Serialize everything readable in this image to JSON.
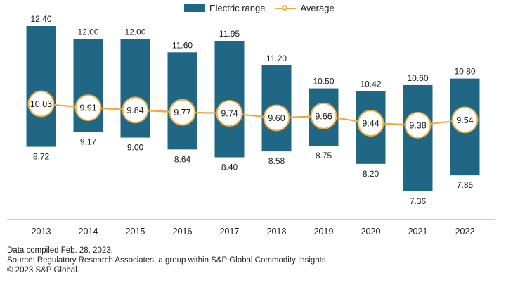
{
  "chart_data": {
    "type": "bar",
    "title": "",
    "xlabel": "",
    "ylabel": "",
    "categories": [
      "2013",
      "2014",
      "2015",
      "2016",
      "2017",
      "2018",
      "2019",
      "2020",
      "2021",
      "2022"
    ],
    "series": [
      {
        "name": "Electric range",
        "kind": "floating-bar",
        "high": [
          12.4,
          12.0,
          12.0,
          11.6,
          11.95,
          11.2,
          10.5,
          10.42,
          10.6,
          10.8
        ],
        "low": [
          8.72,
          9.17,
          9.0,
          8.64,
          8.4,
          8.58,
          8.75,
          8.2,
          7.36,
          7.85
        ],
        "high_labels": [
          "12.40",
          "12.00",
          "12.00",
          "11.60",
          "11.95",
          "11.20",
          "10.50",
          "10.42",
          "10.60",
          "10.80"
        ],
        "low_labels": [
          "8.72",
          "9.17",
          "9.00",
          "8.64",
          "8.40",
          "8.58",
          "8.75",
          "8.20",
          "7.36",
          "7.85"
        ]
      },
      {
        "name": "Average",
        "kind": "line",
        "values": [
          10.03,
          9.91,
          9.84,
          9.77,
          9.74,
          9.6,
          9.66,
          9.44,
          9.38,
          9.54
        ],
        "labels": [
          "10.03",
          "9.91",
          "9.84",
          "9.77",
          "9.74",
          "9.60",
          "9.66",
          "9.44",
          "9.38",
          "9.54"
        ]
      }
    ],
    "ylim": [
      7.0,
      12.6
    ],
    "grid": false,
    "legend_position": "top-center"
  },
  "legend": {
    "bar_label": "Electric range",
    "line_label": "Average"
  },
  "colors": {
    "bar": "#1f6784",
    "line": "#f0a93c",
    "text": "#1a1a1a",
    "axis": "#9a9a9a"
  },
  "footer": {
    "line1": "Data compiled Feb. 28, 2023.",
    "line2": "Source: Regulatory Research Associates, a group within S&P Global Commodity Insights.",
    "line3": "© 2023 S&P Global."
  }
}
